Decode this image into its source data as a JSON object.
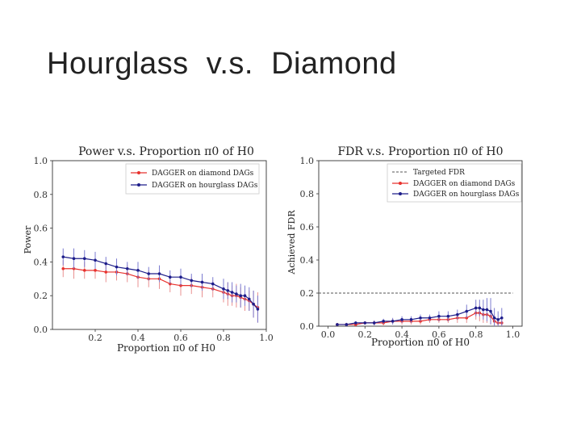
{
  "slide": {
    "title": "Hourglass  v.s.  Diamond"
  },
  "colors": {
    "red": "#e8312d",
    "blue": "#1d1d8a",
    "redbar": "#e89090",
    "bluebar": "#7b7bd0",
    "target": "#555555"
  },
  "chart_data": [
    {
      "type": "line",
      "title": "Power v.s. Proportion π0 of H0",
      "xlabel": "Proportion π0 of H0",
      "ylabel": "Power",
      "xlim": [
        0.0,
        1.0
      ],
      "ylim": [
        0.0,
        1.0
      ],
      "xticks": [
        "0.2",
        "0.4",
        "0.6",
        "0.8",
        "1.0"
      ],
      "xtick_values": [
        0.2,
        0.4,
        0.6,
        0.8,
        1.0
      ],
      "yticks": [
        "0.0",
        "0.2",
        "0.4",
        "0.6",
        "0.8",
        "1.0"
      ],
      "ytick_values": [
        0.0,
        0.2,
        0.4,
        0.6,
        0.8,
        1.0
      ],
      "legend_position": "top-right",
      "series": [
        {
          "name": "DAGGER on diamond DAGs",
          "color": "#e8312d",
          "x": [
            0.05,
            0.1,
            0.15,
            0.2,
            0.25,
            0.3,
            0.35,
            0.4,
            0.45,
            0.5,
            0.55,
            0.6,
            0.65,
            0.7,
            0.75,
            0.8,
            0.82,
            0.84,
            0.86,
            0.88,
            0.9,
            0.92,
            0.94,
            0.96
          ],
          "y": [
            0.36,
            0.36,
            0.35,
            0.35,
            0.34,
            0.34,
            0.33,
            0.31,
            0.3,
            0.3,
            0.27,
            0.26,
            0.26,
            0.25,
            0.24,
            0.22,
            0.21,
            0.2,
            0.2,
            0.19,
            0.18,
            0.17,
            0.15,
            0.13
          ],
          "err": [
            0.05,
            0.06,
            0.05,
            0.05,
            0.06,
            0.05,
            0.05,
            0.06,
            0.05,
            0.06,
            0.05,
            0.06,
            0.05,
            0.06,
            0.05,
            0.06,
            0.07,
            0.06,
            0.07,
            0.06,
            0.07,
            0.06,
            0.08,
            0.09
          ]
        },
        {
          "name": "DAGGER on hourglass DAGs",
          "color": "#1d1d8a",
          "x": [
            0.05,
            0.1,
            0.15,
            0.2,
            0.25,
            0.3,
            0.35,
            0.4,
            0.45,
            0.5,
            0.55,
            0.6,
            0.65,
            0.7,
            0.75,
            0.8,
            0.82,
            0.84,
            0.86,
            0.88,
            0.9,
            0.92,
            0.94,
            0.96
          ],
          "y": [
            0.43,
            0.42,
            0.42,
            0.41,
            0.39,
            0.37,
            0.36,
            0.35,
            0.33,
            0.33,
            0.31,
            0.31,
            0.29,
            0.28,
            0.27,
            0.24,
            0.23,
            0.22,
            0.21,
            0.2,
            0.2,
            0.18,
            0.15,
            0.12
          ],
          "err": [
            0.05,
            0.06,
            0.05,
            0.05,
            0.04,
            0.05,
            0.04,
            0.05,
            0.04,
            0.05,
            0.04,
            0.05,
            0.04,
            0.05,
            0.04,
            0.06,
            0.05,
            0.06,
            0.05,
            0.07,
            0.06,
            0.07,
            0.08,
            0.08
          ]
        }
      ]
    },
    {
      "type": "line",
      "title": "FDR v.s. Proportion π0 of H0",
      "xlabel": "Proportion π0 of H0",
      "ylabel": "Achieved FDR",
      "xlim": [
        -0.05,
        1.05
      ],
      "ylim": [
        0.0,
        1.0
      ],
      "xticks": [
        "0.0",
        "0.2",
        "0.4",
        "0.6",
        "0.8",
        "1.0"
      ],
      "xtick_values": [
        0.0,
        0.2,
        0.4,
        0.6,
        0.8,
        1.0
      ],
      "yticks": [
        "0.0",
        "0.2",
        "0.4",
        "0.6",
        "0.8",
        "1.0"
      ],
      "ytick_values": [
        0.0,
        0.2,
        0.4,
        0.6,
        0.8,
        1.0
      ],
      "legend_position": "top-right",
      "target_fdr": 0.2,
      "target_xrange": [
        -0.05,
        1.0
      ],
      "series": [
        {
          "name": "Targeted FDR",
          "style": "dashed"
        },
        {
          "name": "DAGGER on diamond DAGs",
          "color": "#e8312d",
          "x": [
            0.05,
            0.1,
            0.15,
            0.2,
            0.25,
            0.3,
            0.35,
            0.4,
            0.45,
            0.5,
            0.55,
            0.6,
            0.65,
            0.7,
            0.75,
            0.8,
            0.82,
            0.84,
            0.86,
            0.88,
            0.9,
            0.92,
            0.94
          ],
          "y": [
            0.01,
            0.01,
            0.01,
            0.02,
            0.02,
            0.02,
            0.03,
            0.03,
            0.03,
            0.03,
            0.04,
            0.04,
            0.04,
            0.05,
            0.05,
            0.08,
            0.08,
            0.07,
            0.07,
            0.06,
            0.03,
            0.02,
            0.02
          ],
          "err": [
            0.005,
            0.01,
            0.01,
            0.01,
            0.015,
            0.015,
            0.015,
            0.02,
            0.02,
            0.02,
            0.02,
            0.02,
            0.02,
            0.03,
            0.03,
            0.04,
            0.05,
            0.05,
            0.05,
            0.05,
            0.04,
            0.03,
            0.03
          ]
        },
        {
          "name": "DAGGER on hourglass DAGs",
          "color": "#1d1d8a",
          "x": [
            0.05,
            0.1,
            0.15,
            0.2,
            0.25,
            0.3,
            0.35,
            0.4,
            0.45,
            0.5,
            0.55,
            0.6,
            0.65,
            0.7,
            0.75,
            0.8,
            0.82,
            0.84,
            0.86,
            0.88,
            0.9,
            0.92,
            0.94
          ],
          "y": [
            0.01,
            0.01,
            0.02,
            0.02,
            0.02,
            0.03,
            0.03,
            0.04,
            0.04,
            0.05,
            0.05,
            0.06,
            0.06,
            0.07,
            0.09,
            0.11,
            0.11,
            0.1,
            0.1,
            0.09,
            0.05,
            0.04,
            0.05
          ],
          "err": [
            0.005,
            0.01,
            0.01,
            0.01,
            0.015,
            0.015,
            0.02,
            0.02,
            0.02,
            0.02,
            0.02,
            0.03,
            0.03,
            0.03,
            0.04,
            0.05,
            0.05,
            0.06,
            0.07,
            0.08,
            0.06,
            0.05,
            0.06
          ]
        }
      ]
    }
  ]
}
